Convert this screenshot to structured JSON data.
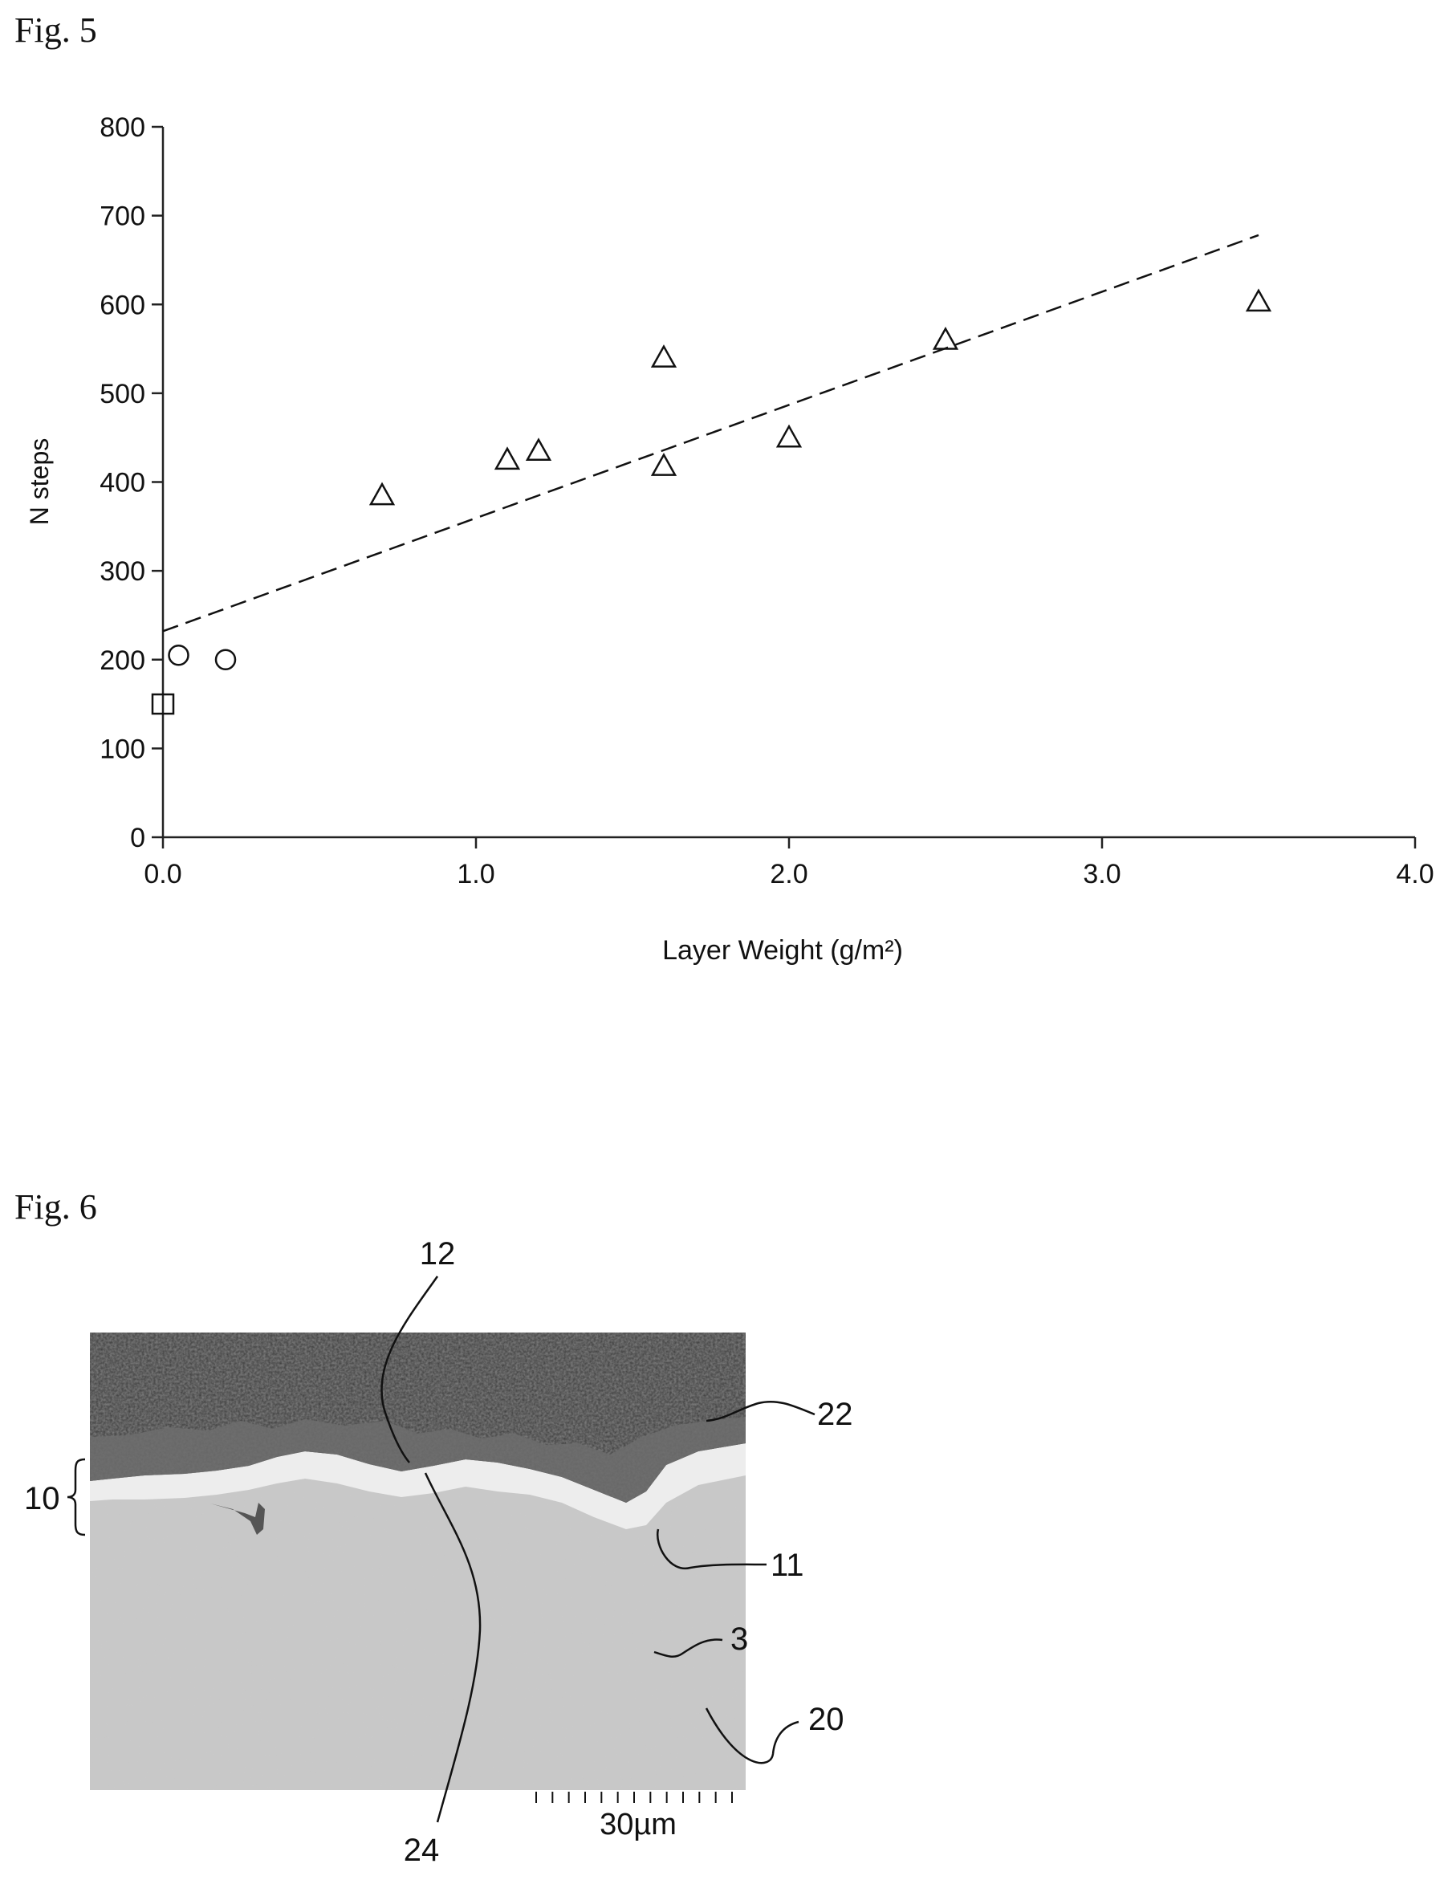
{
  "fig5": {
    "label": "Fig. 5",
    "chart_data": {
      "type": "scatter",
      "title": "",
      "xlabel": "Layer Weight (g/m²)",
      "ylabel": "N steps",
      "xlim": [
        0,
        4.0
      ],
      "ylim": [
        0,
        800
      ],
      "xticks": [
        0.0,
        1.0,
        2.0,
        3.0,
        4.0
      ],
      "xtick_labels": [
        "0.0",
        "1.0",
        "2.0",
        "3.0",
        "4.0"
      ],
      "yticks": [
        0,
        100,
        200,
        300,
        400,
        500,
        600,
        700,
        800
      ],
      "ytick_labels": [
        "0",
        "100",
        "200",
        "300",
        "400",
        "500",
        "600",
        "700",
        "800"
      ],
      "grid": false,
      "series": [
        {
          "marker": "square",
          "points": [
            [
              0.0,
              150
            ]
          ]
        },
        {
          "marker": "circle",
          "points": [
            [
              0.05,
              205
            ],
            [
              0.2,
              200
            ]
          ]
        },
        {
          "marker": "triangle",
          "points": [
            [
              0.7,
              385
            ],
            [
              1.1,
              425
            ],
            [
              1.2,
              435
            ],
            [
              1.6,
              540
            ],
            [
              1.6,
              418
            ],
            [
              2.0,
              450
            ],
            [
              2.5,
              560
            ],
            [
              3.5,
              603
            ]
          ]
        }
      ],
      "trendline": {
        "style": "dashed",
        "x": [
          0.0,
          3.5
        ],
        "y": [
          232,
          678
        ]
      }
    }
  },
  "fig6": {
    "label": "Fig. 6",
    "labels": {
      "l12": "12",
      "l22": "22",
      "l10": "10",
      "l11": "11",
      "l3": "3",
      "l20": "20",
      "l24": "24"
    },
    "scale_bar": "30µm"
  }
}
